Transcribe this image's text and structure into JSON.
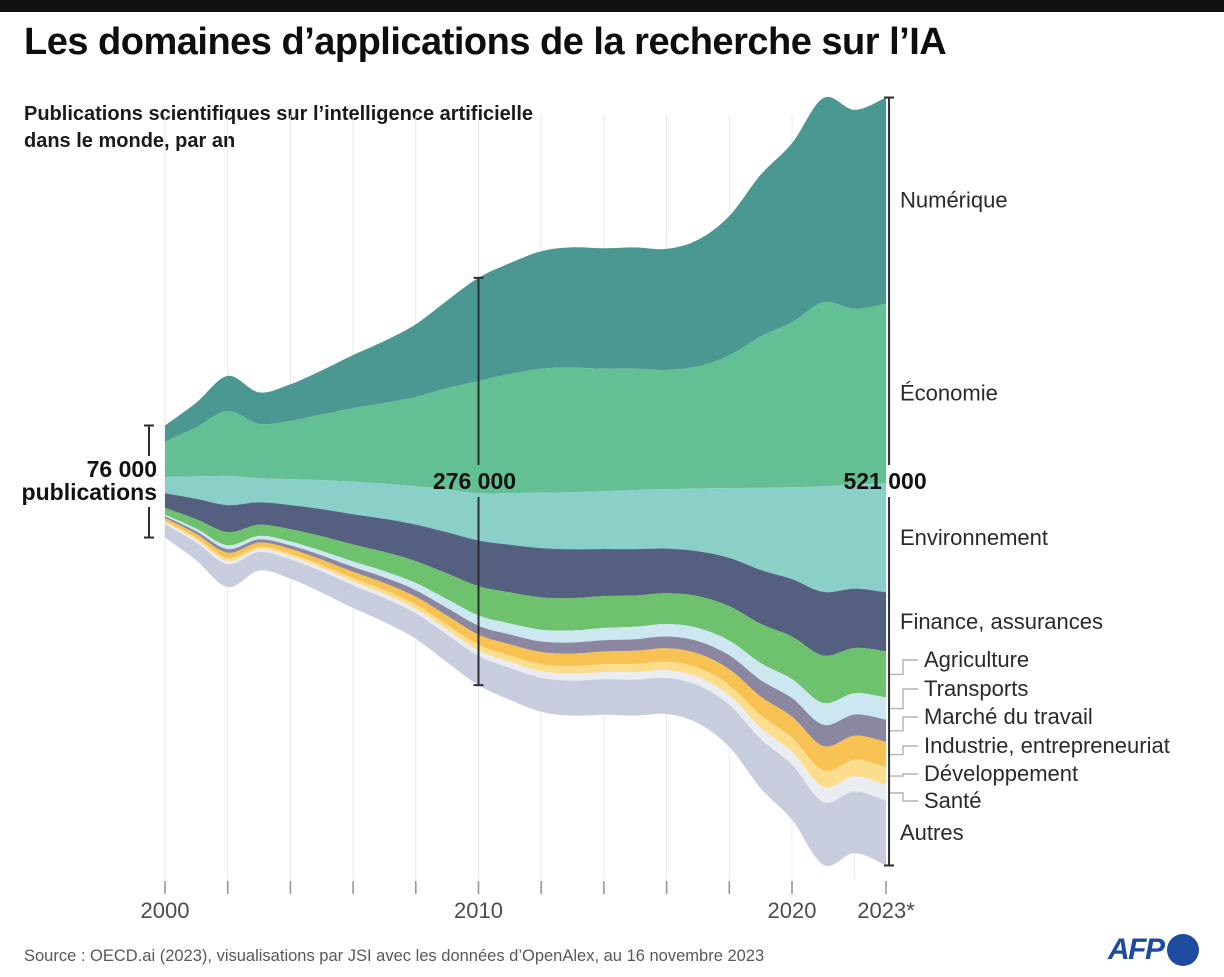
{
  "page": {
    "title": "Les domaines d’applications de la recherche sur l’IA",
    "subtitle_line1": "Publications scientifiques sur l’intelligence artificielle",
    "subtitle_line2": "dans le monde, par an",
    "source": "Source : OECD.ai (2023), visualisations par JSI avec les données d’OpenAlex, au 16 novembre 2023",
    "afp": {
      "text": "AFP",
      "color": "#1d4b9f"
    }
  },
  "chart_data": {
    "type": "area",
    "variant": "streamgraph-silhouette",
    "title": "Les domaines d’applications de la recherche sur l’IA",
    "subtitle": "Publications scientifiques sur l’intelligence artificielle dans le monde, par an",
    "values_unit": "milliers de publications par an (estimations lues sur le graphique)",
    "grid": "verticale, tous les 2 ans",
    "legend_position": "right",
    "x": [
      2000,
      2001,
      2002,
      2003,
      2004,
      2005,
      2006,
      2007,
      2008,
      2009,
      2010,
      2011,
      2012,
      2013,
      2014,
      2015,
      2016,
      2017,
      2018,
      2019,
      2020,
      2021,
      2022,
      2023
    ],
    "x_axis_tick_labels": [
      {
        "year": 2000,
        "label": "2000"
      },
      {
        "year": 2010,
        "label": "2010"
      },
      {
        "year": 2020,
        "label": "2020"
      },
      {
        "year": 2023,
        "label": "2023*"
      }
    ],
    "series": [
      {
        "name": "Numérique",
        "color": "#4a9891",
        "values": [
          11.0,
          16.7,
          23.9,
          21.4,
          24.8,
          30.0,
          36.1,
          42.2,
          49.4,
          59.5,
          70.1,
          75.4,
          79.8,
          81.7,
          81.8,
          82.4,
          82.2,
          85.9,
          94.7,
          109.8,
          121.6,
          138.8,
          135.1,
          140.1
        ]
      },
      {
        "name": "Économie",
        "color": "#63c094",
        "values": [
          24.0,
          33.4,
          44.0,
          36.8,
          39.6,
          44.5,
          50.0,
          54.8,
          60.6,
          68.6,
          76.2,
          80.8,
          84.2,
          84.6,
          83.1,
          82.4,
          80.9,
          83.0,
          90.0,
          102.8,
          112.0,
          124.8,
          119.4,
          121.9
        ]
      },
      {
        "name": "Environnement",
        "color": "#8bcfc9",
        "values": [
          11.0,
          15.2,
          19.9,
          16.5,
          17.6,
          19.7,
          22.0,
          23.9,
          26.1,
          29.3,
          32.1,
          35.0,
          37.6,
          38.8,
          39.3,
          40.1,
          40.4,
          42.6,
          47.5,
          55.7,
          62.4,
          71.8,
          70.6,
          74.0
        ]
      },
      {
        "name": "Finance, assurances",
        "color": "#556080",
        "values": [
          10.0,
          13.9,
          18.3,
          15.2,
          16.4,
          18.4,
          20.6,
          22.5,
          24.8,
          28.0,
          31.0,
          32.4,
          33.5,
          33.1,
          32.0,
          31.5,
          30.3,
          30.5,
          32.8,
          36.6,
          39.0,
          43.2,
          40.3,
          40.1
        ]
      },
      {
        "name": "Agriculture",
        "color": "#6fc26d",
        "values": [
          4.5,
          6.4,
          8.9,
          7.6,
          8.4,
          10.0,
          11.5,
          13.0,
          14.8,
          17.5,
          19.9,
          21.1,
          21.9,
          22.0,
          21.6,
          21.3,
          20.9,
          21.6,
          23.4,
          26.6,
          28.9,
          32.2,
          30.7,
          31.3
        ]
      },
      {
        "name": "Transports",
        "color": "#cde7f0",
        "values": [
          1.2,
          1.8,
          2.6,
          2.3,
          2.6,
          3.1,
          3.7,
          4.2,
          4.9,
          5.9,
          6.9,
          7.5,
          8.0,
          8.2,
          8.3,
          8.4,
          8.5,
          8.9,
          9.9,
          11.6,
          12.9,
          14.8,
          14.5,
          15.1
        ]
      },
      {
        "name": "Marché du travail",
        "color": "#8b87a1",
        "values": [
          1.2,
          1.8,
          2.5,
          2.2,
          2.4,
          2.9,
          3.4,
          3.9,
          4.5,
          5.3,
          6.1,
          6.7,
          7.2,
          7.5,
          7.7,
          7.9,
          8.0,
          8.5,
          9.5,
          11.2,
          12.6,
          14.5,
          14.4,
          15.1
        ]
      },
      {
        "name": "Industrie, entrepreneuriat",
        "color": "#f8c253",
        "values": [
          1.9,
          2.6,
          3.5,
          2.9,
          3.2,
          3.7,
          4.2,
          4.7,
          5.3,
          6.1,
          6.9,
          7.6,
          8.2,
          8.6,
          8.7,
          8.9,
          9.1,
          9.6,
          10.8,
          12.7,
          14.3,
          16.5,
          16.3,
          17.2
        ]
      },
      {
        "name": "Développement",
        "color": "#fbdd8d",
        "values": [
          1.1,
          1.5,
          2.0,
          1.7,
          1.8,
          2.1,
          2.4,
          2.7,
          3.0,
          3.4,
          3.9,
          4.4,
          4.8,
          5.1,
          5.3,
          5.6,
          5.8,
          6.2,
          7.0,
          8.4,
          9.6,
          11.2,
          11.2,
          12.0
        ]
      },
      {
        "name": "Santé",
        "color": "#e9ecf0",
        "values": [
          1.2,
          1.7,
          2.2,
          1.8,
          2.0,
          2.2,
          2.4,
          2.7,
          2.9,
          3.3,
          3.6,
          4.0,
          4.4,
          4.7,
          4.9,
          5.1,
          5.3,
          5.7,
          6.4,
          7.7,
          8.8,
          10.3,
          10.3,
          10.9
        ]
      },
      {
        "name": "Autres",
        "color": "#c8cddd",
        "values": [
          9.0,
          12.1,
          15.6,
          12.6,
          13.2,
          14.3,
          15.5,
          16.4,
          17.3,
          18.9,
          19.9,
          21.7,
          23.1,
          23.8,
          24.0,
          24.4,
          24.5,
          25.7,
          28.6,
          33.4,
          37.3,
          42.7,
          41.9,
          43.8
        ]
      }
    ],
    "annotations": [
      {
        "year": 2000,
        "value": 76000,
        "label": "76 000",
        "label_line2": "publications"
      },
      {
        "year": 2010,
        "value": 276000,
        "label": "276 000"
      },
      {
        "year": 2023,
        "value": 521000,
        "label": "521 000"
      }
    ]
  }
}
